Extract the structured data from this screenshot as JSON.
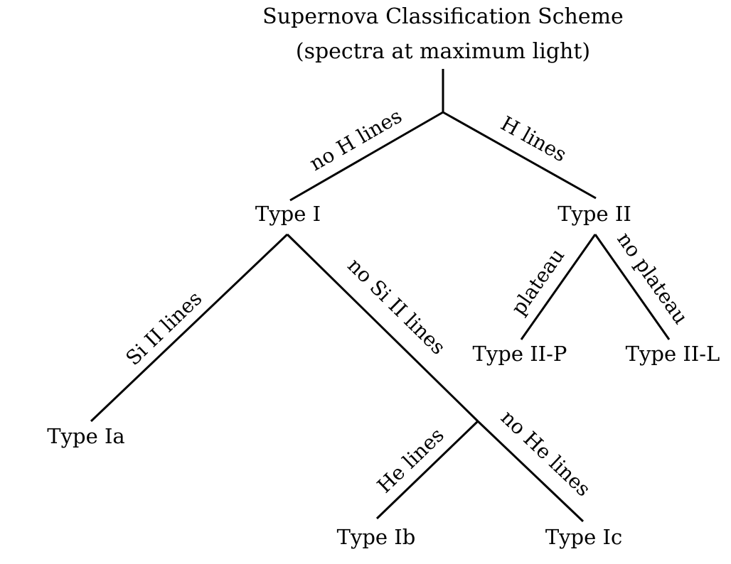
{
  "title": {
    "line1": "Supernova Classification Scheme",
    "line2": "(spectra at maximum light)"
  },
  "nodes": {
    "type_i": "Type I",
    "type_ii": "Type II",
    "type_ia": "Type Ia",
    "type_ib": "Type Ib",
    "type_ic": "Type Ic",
    "type_iip": "Type II-P",
    "type_iil": "Type II-L"
  },
  "edges": {
    "no_h_lines": "no H lines",
    "h_lines": "H lines",
    "si_ii_lines": "Si II lines",
    "no_si_ii_lines": "no Si II lines",
    "he_lines": "He lines",
    "no_he_lines": "no He lines",
    "plateau": "plateau",
    "no_plateau": "no plateau"
  }
}
